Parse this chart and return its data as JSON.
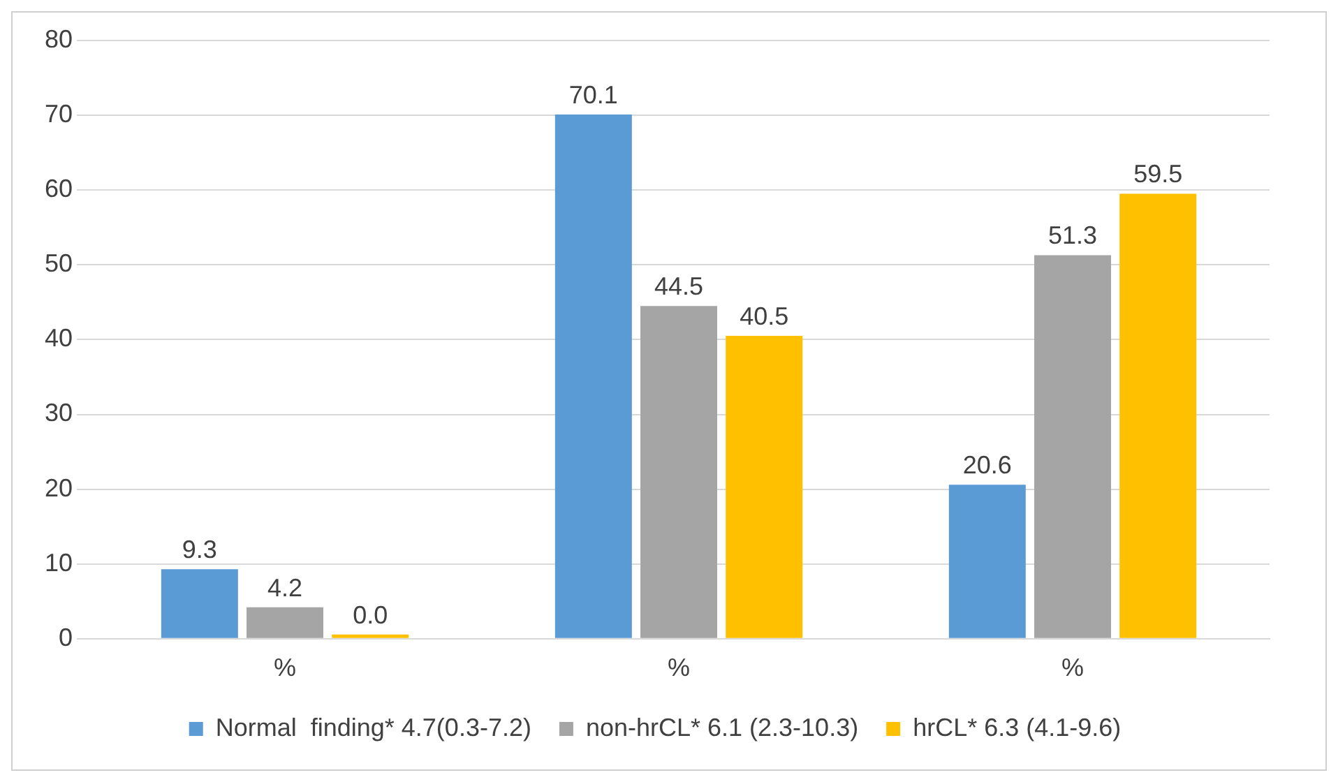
{
  "chart_data": {
    "type": "bar",
    "categories": [
      "%",
      "%",
      "%"
    ],
    "series": [
      {
        "name": "Normal  finding* 4.7(0.3-7.2)",
        "color": "#5b9bd5",
        "values": [
          9.3,
          70.1,
          20.6
        ],
        "value_labels": [
          "9.3",
          "70.1",
          "20.6"
        ]
      },
      {
        "name": "non-hrCL* 6.1 (2.3-10.3)",
        "color": "#a5a5a5",
        "values": [
          4.2,
          44.5,
          51.3
        ],
        "value_labels": [
          "4.2",
          "44.5",
          "51.3"
        ]
      },
      {
        "name": "hrCL* 6.3 (4.1-9.6)",
        "color": "#ffc000",
        "values": [
          0.0,
          40.5,
          59.5
        ],
        "value_labels": [
          "0.0",
          "40.5",
          "59.5"
        ]
      }
    ],
    "ylim": [
      0,
      80
    ],
    "yticks": [
      0,
      10,
      20,
      30,
      40,
      50,
      60,
      70,
      80
    ],
    "grid": "y",
    "legend": "bottom"
  }
}
